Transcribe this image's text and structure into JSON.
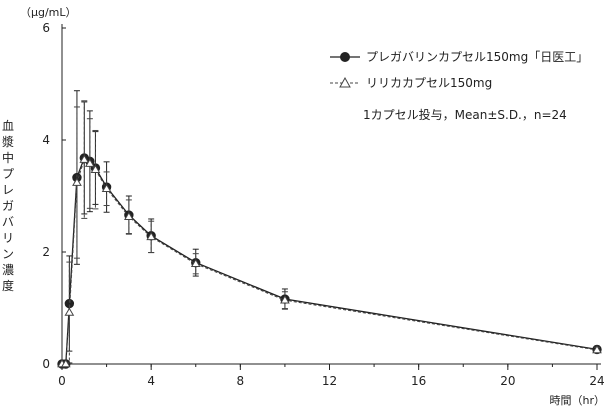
{
  "chart_data": {
    "type": "line",
    "y_unit": "（μg/mL）",
    "ylabel": "血漿中プレガバリン濃度",
    "xlabel": "時間（hr）",
    "xlim": [
      0,
      24
    ],
    "ylim": [
      0,
      6
    ],
    "x_ticks": [
      0,
      4,
      8,
      12,
      16,
      20,
      24
    ],
    "y_ticks": [
      0,
      2,
      4,
      6
    ],
    "legend_position": "top-right",
    "annotation": "1カプセル投与，Mean±S.D.，n=24",
    "series": [
      {
        "name": "プレガバリンカプセル150mg「日医工」",
        "marker": "filled-circle",
        "line_style": "solid",
        "color": "#222222",
        "x": [
          0,
          0.17,
          0.33,
          0.67,
          1,
          1.25,
          1.5,
          2,
          3,
          4,
          6,
          10,
          24
        ],
        "y": [
          0,
          0,
          1.08,
          3.33,
          3.68,
          3.62,
          3.5,
          3.16,
          2.66,
          2.29,
          1.81,
          1.16,
          0.26
        ],
        "sd": [
          0,
          0,
          0.85,
          1.55,
          1.0,
          0.9,
          0.65,
          0.45,
          0.34,
          0.3,
          0.24,
          0.18,
          0.06
        ]
      },
      {
        "name": "リリカカプセル150mg",
        "marker": "open-triangle",
        "line_style": "dashed",
        "color": "#444444",
        "x": [
          0,
          0.17,
          0.33,
          0.67,
          1,
          1.25,
          1.5,
          2,
          3,
          4,
          6,
          10,
          24
        ],
        "y": [
          0,
          0,
          0.92,
          3.24,
          3.65,
          3.58,
          3.47,
          3.13,
          2.63,
          2.27,
          1.79,
          1.14,
          0.25
        ],
        "sd": [
          0,
          0,
          0.9,
          1.35,
          1.05,
          0.8,
          0.7,
          0.3,
          0.3,
          0.28,
          0.18,
          0.15,
          0.05
        ]
      }
    ]
  }
}
